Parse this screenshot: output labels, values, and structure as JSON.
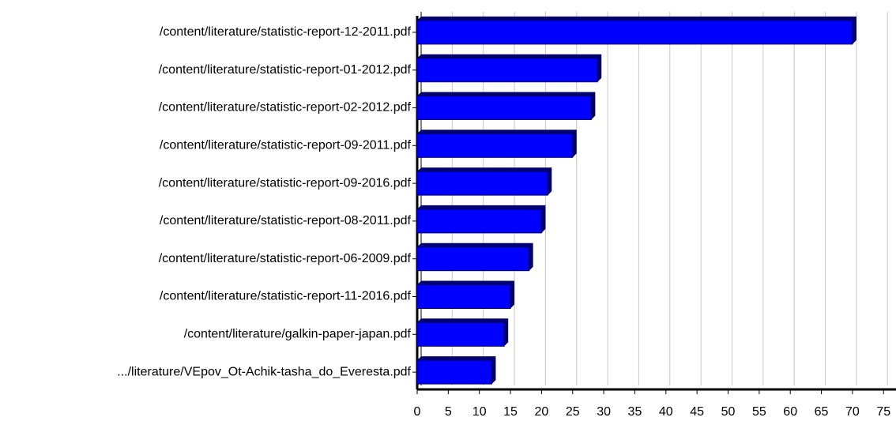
{
  "chart_data": {
    "type": "bar",
    "orientation": "horizontal",
    "categories": [
      "/content/literature/statistic-report-12-2011.pdf",
      "/content/literature/statistic-report-01-2012.pdf",
      "/content/literature/statistic-report-02-2012.pdf",
      "/content/literature/statistic-report-09-2011.pdf",
      "/content/literature/statistic-report-09-2016.pdf",
      "/content/literature/statistic-report-08-2011.pdf",
      "/content/literature/statistic-report-06-2009.pdf",
      "/content/literature/statistic-report-11-2016.pdf",
      "/content/literature/galkin-paper-japan.pdf",
      ".../literature/VEpov_Ot-Achik-tasha_do_Everesta.pdf"
    ],
    "values": [
      70,
      29,
      28,
      25,
      21,
      20,
      18,
      15,
      14,
      12
    ],
    "color": "#0000ff",
    "xlim": [
      0,
      77
    ],
    "xticks": [
      0,
      5,
      10,
      15,
      20,
      25,
      30,
      35,
      40,
      45,
      50,
      55,
      60,
      65,
      70,
      75
    ],
    "grid": true
  }
}
